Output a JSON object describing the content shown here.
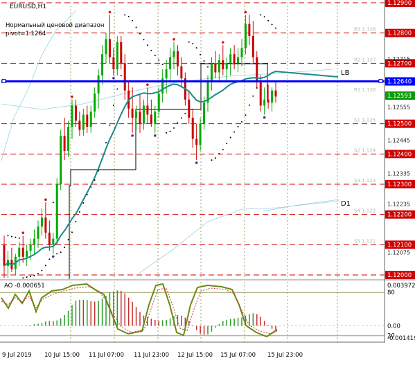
{
  "chart_data": {
    "type": "candlestick",
    "symbol": "EURUSD,H1",
    "indicator_title": "Нормальный ценовой диапазон",
    "pivot_label": "pivot=1.1264",
    "colors": {
      "bull": "#00aa00",
      "bear": "#cc0000",
      "ma": "#1a8a8a",
      "lb": "#0000ff",
      "dash": "#d00000",
      "ao_line": "#6a8a10",
      "ao_signal": "#c83030",
      "dots": "#000000",
      "grid": "#9aa060"
    },
    "y_ticks": [
      "1.12900",
      "1.12800",
      "1.12700",
      "1.12640",
      "1.12593",
      "1.12500",
      "1.12400",
      "1.12300",
      "1.12200",
      "1.12100",
      "1.12000"
    ],
    "y_minor_ticks": [
      "1.12715",
      "1.12555",
      "1.12445",
      "1.12335",
      "1.12235",
      "1.12075"
    ],
    "dashed_levels": [
      1.129,
      1.128,
      1.127,
      1.125,
      1.124,
      1.123,
      1.122,
      1.121,
      1.12
    ],
    "lb_level": 1.1264,
    "last_price": 1.12593,
    "level_tags": [
      "R3 1.128",
      "R2 1.127",
      "R1 1.126",
      "S1 1.125",
      "S2 1.124",
      "S3 1.123",
      "S4 1.122",
      "S5 1.121"
    ],
    "line_labels": {
      "lb": "LB",
      "d1": "D1"
    },
    "x_labels": [
      "9 Jul 2019",
      "10 Jul 15:00",
      "11 Jul 07:00",
      "11 Jul 23:00",
      "12 Jul 15:00",
      "15 Jul 07:00",
      "15 Jul 23:00"
    ],
    "ohlc": [
      [
        1.121,
        1.1213,
        1.1199,
        1.1203
      ],
      [
        1.1203,
        1.1208,
        1.1199,
        1.1205
      ],
      [
        1.1205,
        1.1209,
        1.1201,
        1.1202
      ],
      [
        1.1202,
        1.1207,
        1.12,
        1.1206
      ],
      [
        1.1206,
        1.1211,
        1.1203,
        1.1209
      ],
      [
        1.1209,
        1.1213,
        1.1204,
        1.1206
      ],
      [
        1.1206,
        1.121,
        1.1203,
        1.1208
      ],
      [
        1.1208,
        1.1212,
        1.1205,
        1.121
      ],
      [
        1.121,
        1.1215,
        1.1207,
        1.1212
      ],
      [
        1.1212,
        1.1218,
        1.1209,
        1.1216
      ],
      [
        1.1216,
        1.1222,
        1.1213,
        1.1219
      ],
      [
        1.1219,
        1.1224,
        1.1212,
        1.1214
      ],
      [
        1.1214,
        1.1218,
        1.1208,
        1.121
      ],
      [
        1.121,
        1.1214,
        1.1207,
        1.1212
      ],
      [
        1.1212,
        1.1232,
        1.121,
        1.123
      ],
      [
        1.123,
        1.1248,
        1.1228,
        1.1246
      ],
      [
        1.1246,
        1.1252,
        1.1238,
        1.1241
      ],
      [
        1.1241,
        1.1251,
        1.1239,
        1.1249
      ],
      [
        1.1249,
        1.1258,
        1.1245,
        1.1256
      ],
      [
        1.1256,
        1.1258,
        1.1249,
        1.1251
      ],
      [
        1.1251,
        1.1254,
        1.1246,
        1.1248
      ],
      [
        1.1248,
        1.1255,
        1.1246,
        1.1253
      ],
      [
        1.1253,
        1.1256,
        1.1247,
        1.1249
      ],
      [
        1.1249,
        1.1256,
        1.1247,
        1.1254
      ],
      [
        1.1254,
        1.1262,
        1.1252,
        1.126
      ],
      [
        1.126,
        1.1268,
        1.1255,
        1.1266
      ],
      [
        1.1266,
        1.1276,
        1.1263,
        1.1273
      ],
      [
        1.1273,
        1.128,
        1.127,
        1.1278
      ],
      [
        1.1278,
        1.1286,
        1.127,
        1.1272
      ],
      [
        1.1272,
        1.1275,
        1.1266,
        1.1268
      ],
      [
        1.1268,
        1.1279,
        1.1266,
        1.1277
      ],
      [
        1.1277,
        1.1279,
        1.1268,
        1.127
      ],
      [
        1.127,
        1.1273,
        1.1258,
        1.1261
      ],
      [
        1.1261,
        1.1264,
        1.1252,
        1.1255
      ],
      [
        1.1255,
        1.1262,
        1.1247,
        1.1252
      ],
      [
        1.1252,
        1.1256,
        1.1248,
        1.1254
      ],
      [
        1.1254,
        1.126,
        1.1247,
        1.125
      ],
      [
        1.125,
        1.1258,
        1.1248,
        1.1256
      ],
      [
        1.1256,
        1.1262,
        1.125,
        1.1253
      ],
      [
        1.1253,
        1.1258,
        1.1249,
        1.125
      ],
      [
        1.125,
        1.1256,
        1.1247,
        1.1254
      ],
      [
        1.1254,
        1.1262,
        1.1252,
        1.126
      ],
      [
        1.126,
        1.1268,
        1.1257,
        1.1265
      ],
      [
        1.1265,
        1.1271,
        1.126,
        1.1268
      ],
      [
        1.1268,
        1.1275,
        1.1264,
        1.1272
      ],
      [
        1.1272,
        1.1277,
        1.1268,
        1.1274
      ],
      [
        1.1274,
        1.1276,
        1.1266,
        1.1269
      ],
      [
        1.1269,
        1.1272,
        1.1262,
        1.1265
      ],
      [
        1.1265,
        1.1267,
        1.1256,
        1.1258
      ],
      [
        1.1258,
        1.1261,
        1.125,
        1.1252
      ],
      [
        1.1252,
        1.1255,
        1.1242,
        1.1245
      ],
      [
        1.1245,
        1.125,
        1.1238,
        1.1243
      ],
      [
        1.1243,
        1.1252,
        1.1241,
        1.125
      ],
      [
        1.125,
        1.1259,
        1.1248,
        1.1257
      ],
      [
        1.1257,
        1.1266,
        1.1254,
        1.1264
      ],
      [
        1.1264,
        1.1272,
        1.1261,
        1.127
      ],
      [
        1.127,
        1.1274,
        1.1265,
        1.1267
      ],
      [
        1.1267,
        1.1273,
        1.1264,
        1.1271
      ],
      [
        1.1271,
        1.1276,
        1.1266,
        1.1268
      ],
      [
        1.1268,
        1.1272,
        1.1264,
        1.127
      ],
      [
        1.127,
        1.1275,
        1.1266,
        1.1273
      ],
      [
        1.1273,
        1.1276,
        1.1268,
        1.127
      ],
      [
        1.127,
        1.1275,
        1.1267,
        1.1272
      ],
      [
        1.1272,
        1.1278,
        1.1269,
        1.1275
      ],
      [
        1.1275,
        1.1286,
        1.1273,
        1.1283
      ],
      [
        1.1283,
        1.1286,
        1.1276,
        1.1279
      ],
      [
        1.1279,
        1.1284,
        1.127,
        1.1272
      ],
      [
        1.1272,
        1.1274,
        1.1262,
        1.1264
      ],
      [
        1.1264,
        1.1266,
        1.1254,
        1.1256
      ],
      [
        1.1256,
        1.1262,
        1.1253,
        1.1258
      ],
      [
        1.1258,
        1.1263,
        1.1255,
        1.1257
      ],
      [
        1.1257,
        1.1262,
        1.1254,
        1.1261
      ],
      [
        1.1261,
        1.1264,
        1.1257,
        1.1259
      ]
    ],
    "ao_labels": {
      "title": "AO -0.000651",
      "max": "0.003972",
      "level_80": "80",
      "zero": "0.00",
      "level_20": "20",
      "min": "-0.001419"
    }
  }
}
